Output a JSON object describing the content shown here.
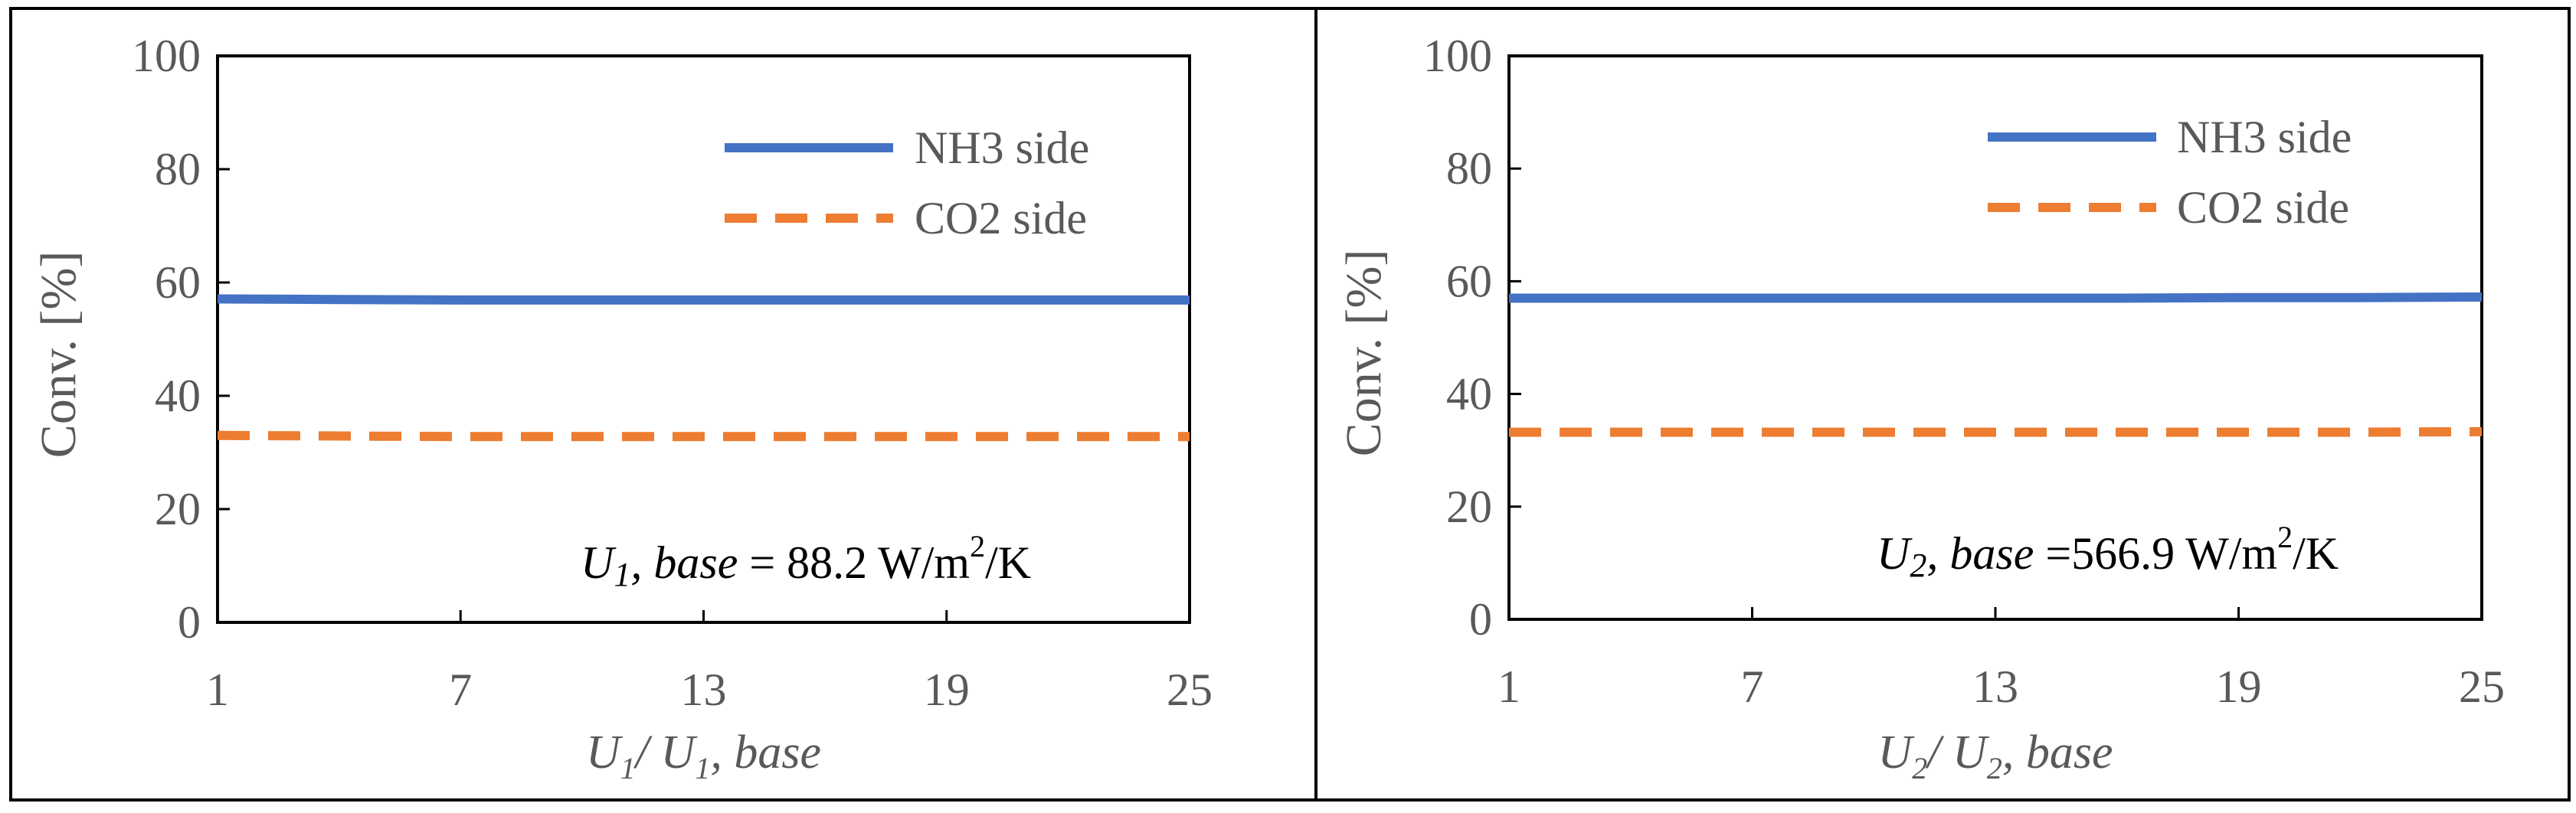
{
  "chart_data": [
    {
      "type": "line",
      "ylabel": "Conv. [%]",
      "xlabel": {
        "var": "U",
        "sub": "1",
        "sep": "/ ",
        "var2": "U",
        "sub2": "1",
        "tail": ", base"
      },
      "x_ticks": [
        "1",
        "7",
        "13",
        "19",
        "25"
      ],
      "y_ticks": [
        "0",
        "20",
        "40",
        "60",
        "80",
        "100"
      ],
      "xlim": [
        1,
        25
      ],
      "ylim": [
        0,
        100
      ],
      "x": [
        1,
        4,
        7,
        10,
        13,
        16,
        19,
        22,
        25
      ],
      "series": [
        {
          "name": "NH3 side",
          "color": "#4472C4",
          "style": "solid",
          "values": [
            57.1,
            57.0,
            56.9,
            56.9,
            56.9,
            56.9,
            56.9,
            56.9,
            56.9
          ]
        },
        {
          "name": "CO2 side",
          "color": "#ED7D31",
          "style": "dashed",
          "values": [
            33.0,
            32.9,
            32.8,
            32.8,
            32.8,
            32.8,
            32.8,
            32.8,
            32.8
          ]
        }
      ],
      "legend_position": "top-right",
      "grid": false,
      "annotation": {
        "var": "U",
        "sub": "1",
        "italic_part": ", base",
        "rest": " = 88.2 W/m",
        "sup": "2",
        "unit_tail": "/K"
      }
    },
    {
      "type": "line",
      "ylabel": "Conv. [%]",
      "xlabel": {
        "var": "U",
        "sub": "2",
        "sep": "/ ",
        "var2": "U",
        "sub2": "2",
        "tail": ", base"
      },
      "x_ticks": [
        "1",
        "7",
        "13",
        "19",
        "25"
      ],
      "y_ticks": [
        "0",
        "20",
        "40",
        "60",
        "80",
        "100"
      ],
      "xlim": [
        1,
        25
      ],
      "ylim": [
        0,
        100
      ],
      "x": [
        1,
        4,
        7,
        10,
        13,
        16,
        19,
        22,
        25
      ],
      "series": [
        {
          "name": "NH3 side",
          "color": "#4472C4",
          "style": "solid",
          "values": [
            57.0,
            57.0,
            57.0,
            57.0,
            57.0,
            57.0,
            57.1,
            57.1,
            57.2
          ]
        },
        {
          "name": "CO2 side",
          "color": "#ED7D31",
          "style": "dashed",
          "values": [
            33.2,
            33.2,
            33.2,
            33.2,
            33.2,
            33.2,
            33.2,
            33.2,
            33.3
          ]
        }
      ],
      "legend_position": "top-right",
      "grid": false,
      "annotation": {
        "var": "U",
        "sub": "2",
        "italic_part": ", base",
        "rest": " =566.9 W/m",
        "sup": "2",
        "unit_tail": "/K"
      }
    }
  ]
}
